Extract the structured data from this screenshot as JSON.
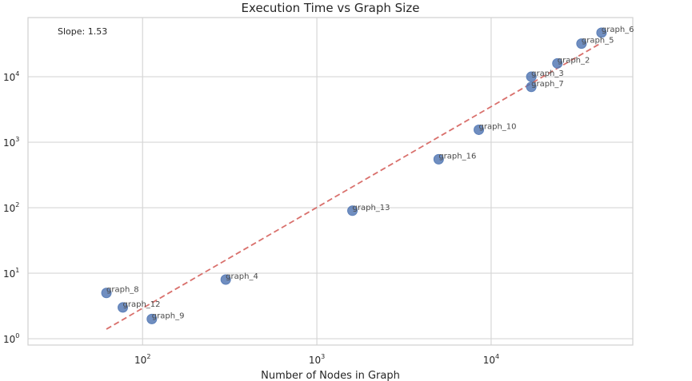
{
  "chart_data": {
    "type": "scatter",
    "title": "Execution Time vs Graph Size",
    "xlabel": "Number of Nodes in Graph",
    "ylabel": "",
    "x_scale": "log",
    "y_scale": "log",
    "xlim": [
      22,
      65000
    ],
    "ylim": [
      0.8,
      80000
    ],
    "grid": true,
    "annotation": "Slope: 1.53",
    "x_ticks": [
      {
        "value": 100,
        "base": "10",
        "exp": "2"
      },
      {
        "value": 1000,
        "base": "10",
        "exp": "3"
      },
      {
        "value": 10000,
        "base": "10",
        "exp": "4"
      }
    ],
    "y_ticks": [
      {
        "value": 1,
        "base": "10",
        "exp": "0"
      },
      {
        "value": 10,
        "base": "10",
        "exp": "1"
      },
      {
        "value": 100,
        "base": "10",
        "exp": "2"
      },
      {
        "value": 1000,
        "base": "10",
        "exp": "3"
      },
      {
        "value": 10000,
        "base": "10",
        "exp": "4"
      }
    ],
    "points": [
      {
        "label": "graph_8",
        "x": 62,
        "y": 5
      },
      {
        "label": "graph_12",
        "x": 77,
        "y": 3
      },
      {
        "label": "graph_9",
        "x": 113,
        "y": 2
      },
      {
        "label": "graph_4",
        "x": 300,
        "y": 8
      },
      {
        "label": "graph_13",
        "x": 1600,
        "y": 90
      },
      {
        "label": "graph_16",
        "x": 5000,
        "y": 550
      },
      {
        "label": "graph_10",
        "x": 8500,
        "y": 1550
      },
      {
        "label": "graph_3",
        "x": 17000,
        "y": 10000
      },
      {
        "label": "graph_7",
        "x": 17000,
        "y": 7000
      },
      {
        "label": "graph_2",
        "x": 24000,
        "y": 16000
      },
      {
        "label": "graph_5",
        "x": 33000,
        "y": 32000
      },
      {
        "label": "graph_6",
        "x": 43000,
        "y": 47000
      }
    ],
    "fit_line": {
      "x": [
        62,
        43000
      ],
      "y": [
        1.4,
        33000
      ],
      "color": "#d9706c"
    },
    "point_color": "#4c72b0"
  }
}
